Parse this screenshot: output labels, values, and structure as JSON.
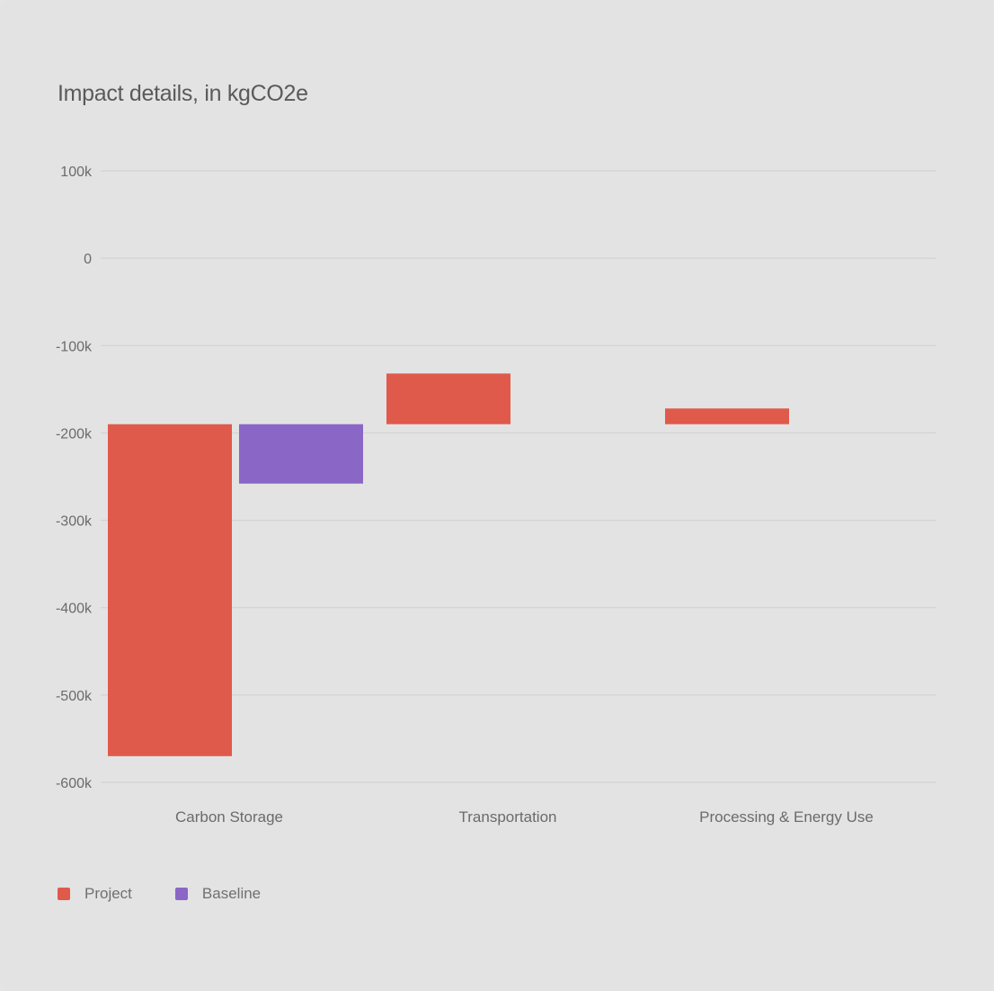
{
  "chart_data": {
    "type": "bar",
    "title": "Impact details, in kgCO2e",
    "xlabel": "",
    "ylabel": "",
    "categories": [
      "Carbon Storage",
      "Transportation",
      "Processing & Energy Use"
    ],
    "series": [
      {
        "name": "Project",
        "color": "#e05a4b",
        "bars": [
          {
            "category": "Carbon Storage",
            "start": -190000,
            "end": -570000
          },
          {
            "category": "Transportation",
            "start": -190000,
            "end": -132000
          },
          {
            "category": "Processing & Energy Use",
            "start": -190000,
            "end": -172000
          }
        ]
      },
      {
        "name": "Baseline",
        "color": "#8a66c7",
        "bars": [
          {
            "category": "Carbon Storage",
            "start": -190000,
            "end": -258000
          }
        ]
      }
    ],
    "ylim": [
      -600000,
      100000
    ],
    "yticks": [
      100000,
      0,
      -100000,
      -200000,
      -300000,
      -400000,
      -500000,
      -600000
    ],
    "ytick_labels": [
      "100k",
      "0",
      "-100k",
      "-200k",
      "-300k",
      "-400k",
      "-500k",
      "-600k"
    ],
    "grid": true,
    "legend_position": "bottom-left"
  }
}
